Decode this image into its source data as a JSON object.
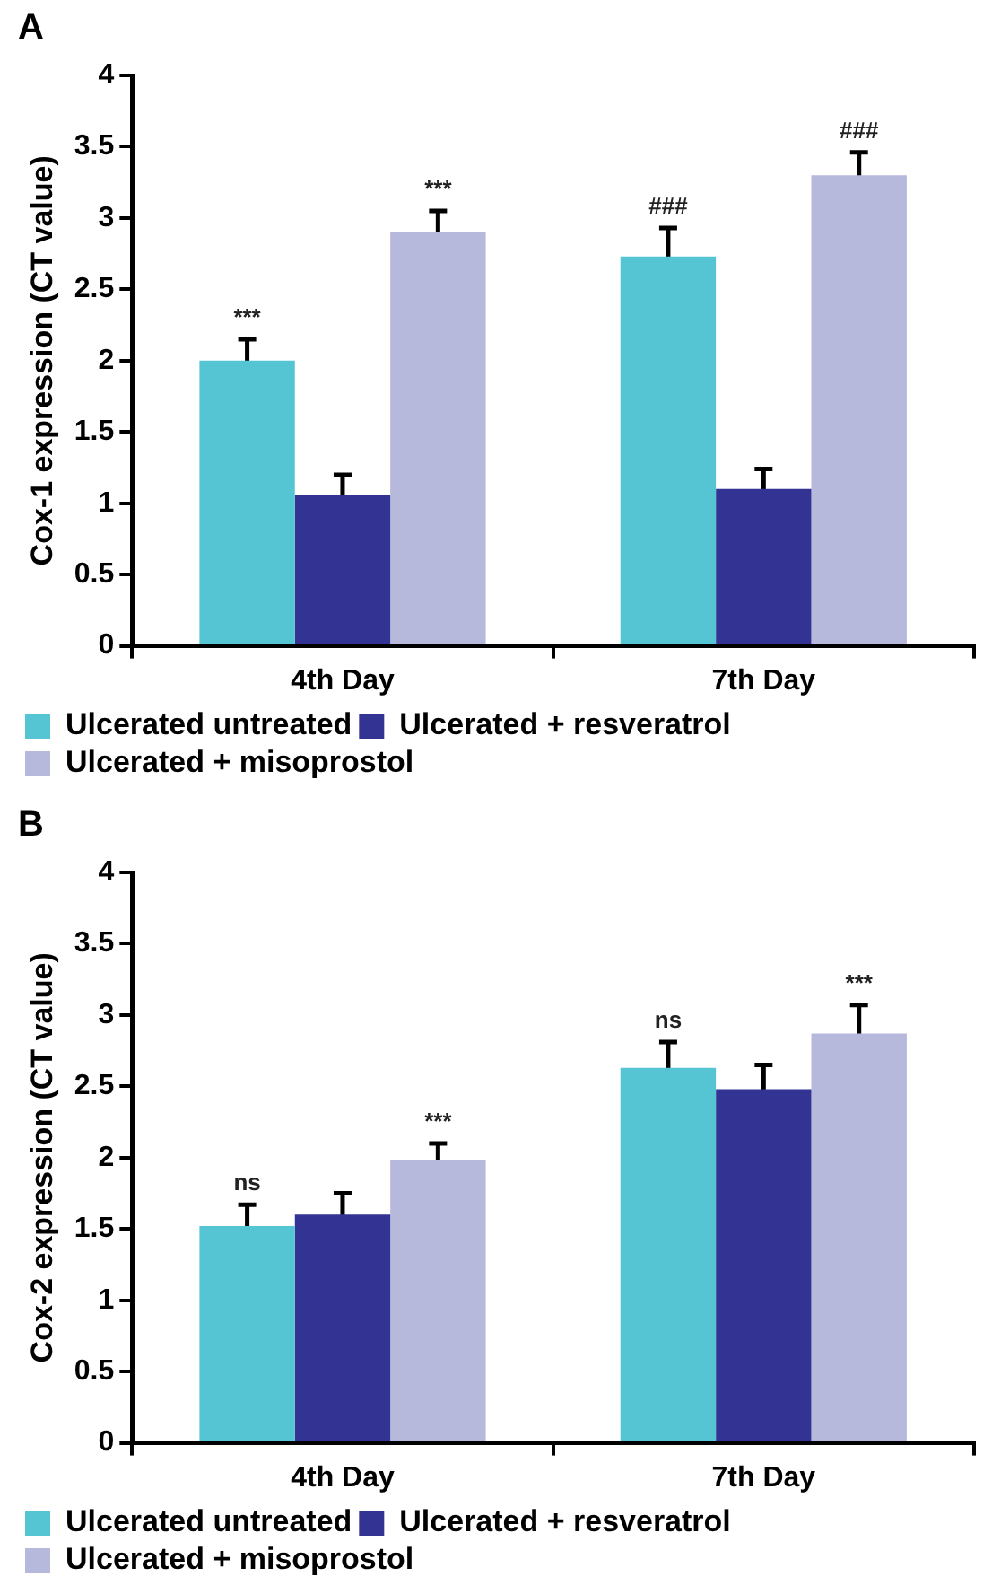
{
  "chart_data": [
    {
      "type": "bar",
      "title": "A",
      "ylabel": "Cox-1 expression (CT value)",
      "categories": [
        "4th Day",
        "7th Day"
      ],
      "ylim": [
        0,
        4
      ],
      "yticks": [
        0,
        0.5,
        1,
        1.5,
        2,
        2.5,
        3,
        3.5,
        4
      ],
      "grid": false,
      "legend": "bottom",
      "series": [
        {
          "name": "Ulcerated untreated",
          "color": "#56c5d3",
          "values": [
            2.0,
            2.73
          ],
          "errors": [
            0.15,
            0.2
          ],
          "value_labels": [
            "***",
            "###"
          ]
        },
        {
          "name": "Ulcerated + resveratrol",
          "color": "#333393",
          "values": [
            1.06,
            1.1
          ],
          "errors": [
            0.14,
            0.14
          ]
        },
        {
          "name": "Ulcerated + misoprostol",
          "color": "#b6b8dc",
          "values": [
            2.9,
            3.3
          ],
          "errors": [
            0.15,
            0.16
          ],
          "value_labels": [
            "***",
            "###"
          ]
        }
      ]
    },
    {
      "type": "bar",
      "title": "B",
      "ylabel": "Cox-2 expression (CT value)",
      "categories": [
        "4th Day",
        "7th Day"
      ],
      "ylim": [
        0,
        4
      ],
      "yticks": [
        0,
        0.5,
        1,
        1.5,
        2,
        2.5,
        3,
        3.5,
        4
      ],
      "grid": false,
      "legend": "bottom",
      "series": [
        {
          "name": "Ulcerated untreated",
          "color": "#56c5d3",
          "values": [
            1.52,
            2.63
          ],
          "errors": [
            0.15,
            0.18
          ],
          "value_labels": [
            "ns",
            "ns"
          ]
        },
        {
          "name": "Ulcerated + resveratrol",
          "color": "#333393",
          "values": [
            1.6,
            2.48
          ],
          "errors": [
            0.15,
            0.17
          ]
        },
        {
          "name": "Ulcerated + misoprostol",
          "color": "#b6b8dc",
          "values": [
            1.98,
            2.87
          ],
          "errors": [
            0.12,
            0.2
          ],
          "value_labels": [
            "***",
            "***"
          ]
        }
      ]
    }
  ]
}
